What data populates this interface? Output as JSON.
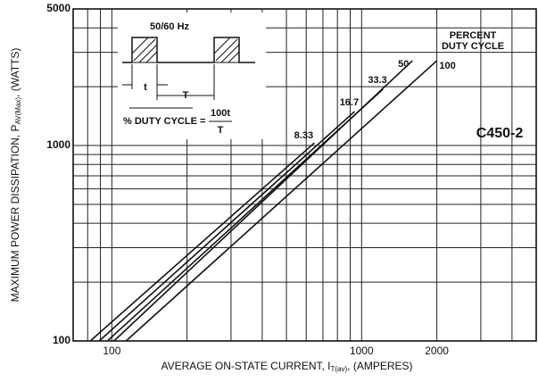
{
  "chart_data": {
    "type": "line",
    "x_label": [
      "AVERAGE ON-STATE CURRENT, I",
      "T(av)",
      ", (AMPERES)"
    ],
    "y_label": [
      "MAXIMUM POWER DISSIPATION, P",
      "AV(Max)",
      ", (WATTS)"
    ],
    "log_x": true,
    "log_y": true,
    "grid": true,
    "xlim": [
      70,
      5000
    ],
    "ylim": [
      100,
      5000
    ],
    "xticks": [
      100,
      1000,
      2000
    ],
    "yticks": [
      100,
      1000,
      5000
    ],
    "xminor": [
      80,
      90,
      200,
      300,
      400,
      500,
      600,
      700,
      800,
      900,
      3000,
      4000
    ],
    "yminor": [
      200,
      300,
      400,
      500,
      600,
      700,
      800,
      900,
      2000,
      3000,
      4000
    ],
    "legend_title": [
      "PERCENT",
      "DUTY CYCLE"
    ],
    "annotations": {
      "model": "C450-2",
      "frequency": "50/60 Hz",
      "t": "t",
      "T": "T",
      "formula": "% DUTY CYCLE =",
      "numerator": "100t",
      "denominator": "T"
    },
    "series": [
      {
        "name": "8.33",
        "color": "#111111",
        "x": [
          82,
          647
        ],
        "values": [
          100,
          1032
        ]
      },
      {
        "name": "16.7",
        "color": "#111111",
        "x": [
          89,
          937
        ],
        "values": [
          100,
          1493
        ]
      },
      {
        "name": "33.3",
        "color": "#111111",
        "x": [
          96,
          1216
        ],
        "values": [
          100,
          1941
        ]
      },
      {
        "name": "50",
        "color": "#111111",
        "x": [
          102,
          1597
        ],
        "values": [
          100,
          2716
        ]
      },
      {
        "name": "100",
        "color": "#111111",
        "x": [
          114,
          2000
        ],
        "values": [
          100,
          2716
        ]
      }
    ]
  }
}
